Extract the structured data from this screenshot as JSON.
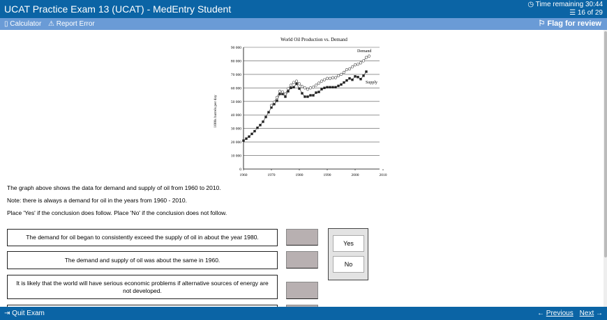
{
  "header": {
    "title": "UCAT Practice Exam 13 (UCAT) - MedEntry Student",
    "time_remaining": "Time remaining 30:44",
    "question_count": "16 of 29"
  },
  "toolbar": {
    "calculator": "Calculator",
    "report_error": "Report Error",
    "flag": "Flag for review"
  },
  "chart_data": {
    "type": "line",
    "title": "World Oil Production vs. Demand",
    "xlabel": "",
    "ylabel": "1000s barrels per day",
    "xlim": [
      1960,
      2010
    ],
    "ylim": [
      0,
      90000
    ],
    "x_ticks": [
      "1960",
      "1970",
      "1980",
      "1990",
      "2000",
      "2010"
    ],
    "y_ticks": [
      "0",
      "10 000",
      "20 000",
      "30 000",
      "40 000",
      "50 000",
      "60 000",
      "70 000",
      "80 000",
      "90 000"
    ],
    "grid": true,
    "series": [
      {
        "name": "Supply",
        "marker": "filled-square",
        "x": [
          1960,
          1961,
          1962,
          1963,
          1964,
          1965,
          1966,
          1967,
          1968,
          1969,
          1970,
          1971,
          1972,
          1973,
          1974,
          1975,
          1976,
          1977,
          1978,
          1979,
          1980,
          1981,
          1982,
          1983,
          1984,
          1985,
          1986,
          1987,
          1988,
          1989,
          1990,
          1991,
          1992,
          1993,
          1994,
          1995,
          1996,
          1997,
          1998,
          1999,
          2000,
          2001,
          2002,
          2003,
          2004
        ],
        "y": [
          21000,
          22500,
          24000,
          26000,
          28000,
          30500,
          32500,
          35000,
          38500,
          42000,
          45500,
          48000,
          50500,
          55500,
          55500,
          53500,
          57500,
          60000,
          60500,
          63000,
          59500,
          56000,
          53500,
          53500,
          54500,
          54500,
          56500,
          57000,
          59000,
          60000,
          60500,
          60500,
          60500,
          60500,
          61500,
          62500,
          64000,
          65500,
          67000,
          66000,
          68500,
          68000,
          66500,
          69000,
          72000
        ]
      },
      {
        "name": "Demand",
        "marker": "open-circle",
        "x": [
          1970,
          1971,
          1972,
          1973,
          1974,
          1975,
          1976,
          1977,
          1978,
          1979,
          1980,
          1981,
          1982,
          1983,
          1984,
          1985,
          1986,
          1987,
          1988,
          1989,
          1990,
          1991,
          1992,
          1993,
          1994,
          1995,
          1996,
          1997,
          1998,
          1999,
          2000,
          2001,
          2002,
          2003,
          2004,
          2005
        ],
        "y": [
          47000,
          49500,
          53000,
          57500,
          57000,
          55500,
          59500,
          62000,
          64000,
          65000,
          63000,
          61000,
          60000,
          59000,
          60000,
          60500,
          62000,
          63500,
          65000,
          66000,
          67000,
          67000,
          67500,
          67500,
          69000,
          70000,
          71500,
          73500,
          74000,
          75500,
          77000,
          77500,
          78500,
          80000,
          82500,
          83500
        ]
      }
    ]
  },
  "intro": "The graph above shows the data for demand and supply of oil from 1960 to 2010.",
  "note": "Note: there is always a demand for oil in the years from 1960 - 2010.",
  "instruction": "Place 'Yes' if the conclusion does follow. Place 'No' if the conclusion does not follow.",
  "statements": [
    "The demand for oil began to consistently exceed the supply of oil in about the year 1980.",
    "The demand and supply of oil was about the same in 1960.",
    "It is likely that the world will have serious economic problems if alternative sources of energy are not developed."
  ],
  "options": {
    "yes": "Yes",
    "no": "No"
  },
  "footer": {
    "quit": "Quit Exam",
    "previous": "Previous",
    "next": "Next"
  }
}
